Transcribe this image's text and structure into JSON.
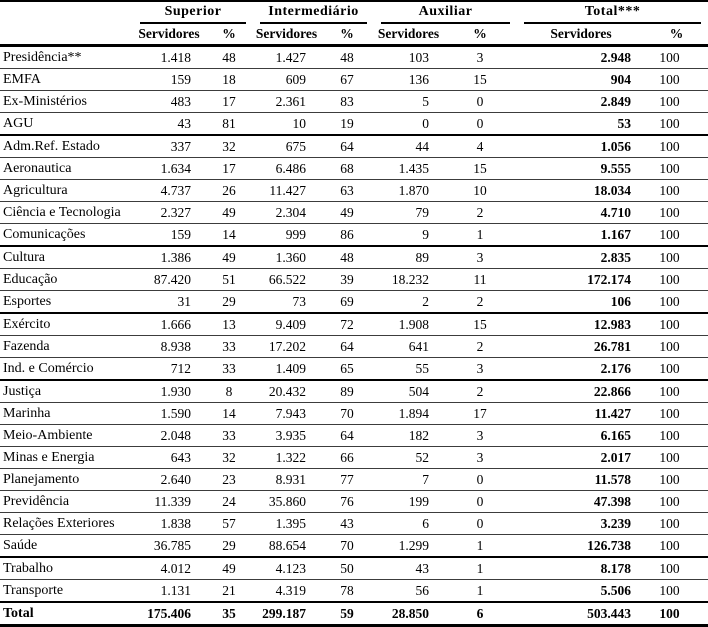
{
  "table": {
    "column_groups": [
      {
        "label": "Superior"
      },
      {
        "label": "Intermediário"
      },
      {
        "label": "Auxiliar"
      },
      {
        "label": "Total***"
      }
    ],
    "subheader": {
      "servidores": "Servidores",
      "percent": "%"
    },
    "rows": [
      {
        "label": "Presidência**",
        "values": [
          "1.418",
          "48",
          "1.427",
          "48",
          "103",
          "3",
          "2.948",
          "100"
        ]
      },
      {
        "label": "EMFA",
        "values": [
          "159",
          "18",
          "609",
          "67",
          "136",
          "15",
          "904",
          "100"
        ]
      },
      {
        "label": "Ex-Ministérios",
        "values": [
          "483",
          "17",
          "2.361",
          "83",
          "5",
          "0",
          "2.849",
          "100"
        ]
      },
      {
        "label": "AGU",
        "values": [
          "43",
          "81",
          "10",
          "19",
          "0",
          "0",
          "53",
          "100"
        ],
        "thick_below": true
      },
      {
        "label": "Adm.Ref. Estado",
        "values": [
          "337",
          "32",
          "675",
          "64",
          "44",
          "4",
          "1.056",
          "100"
        ]
      },
      {
        "label": "Aeronautica",
        "values": [
          "1.634",
          "17",
          "6.486",
          "68",
          "1.435",
          "15",
          "9.555",
          "100"
        ]
      },
      {
        "label": "Agricultura",
        "values": [
          "4.737",
          "26",
          "11.427",
          "63",
          "1.870",
          "10",
          "18.034",
          "100"
        ]
      },
      {
        "label": "Ciência e Tecnologia",
        "values": [
          "2.327",
          "49",
          "2.304",
          "49",
          "79",
          "2",
          "4.710",
          "100"
        ]
      },
      {
        "label": "Comunicações",
        "values": [
          "159",
          "14",
          "999",
          "86",
          "9",
          "1",
          "1.167",
          "100"
        ],
        "thick_below": true
      },
      {
        "label": "Cultura",
        "values": [
          "1.386",
          "49",
          "1.360",
          "48",
          "89",
          "3",
          "2.835",
          "100"
        ]
      },
      {
        "label": "Educação",
        "values": [
          "87.420",
          "51",
          "66.522",
          "39",
          "18.232",
          "11",
          "172.174",
          "100"
        ]
      },
      {
        "label": "Esportes",
        "values": [
          "31",
          "29",
          "73",
          "69",
          "2",
          "2",
          "106",
          "100"
        ],
        "thick_below": true
      },
      {
        "label": "Exército",
        "values": [
          "1.666",
          "13",
          "9.409",
          "72",
          "1.908",
          "15",
          "12.983",
          "100"
        ]
      },
      {
        "label": "Fazenda",
        "values": [
          "8.938",
          "33",
          "17.202",
          "64",
          "641",
          "2",
          "26.781",
          "100"
        ]
      },
      {
        "label": "Ind. e Comércio",
        "values": [
          "712",
          "33",
          "1.409",
          "65",
          "55",
          "3",
          "2.176",
          "100"
        ],
        "thick_below": true
      },
      {
        "label": "Justiça",
        "values": [
          "1.930",
          "8",
          "20.432",
          "89",
          "504",
          "2",
          "22.866",
          "100"
        ]
      },
      {
        "label": "Marinha",
        "values": [
          "1.590",
          "14",
          "7.943",
          "70",
          "1.894",
          "17",
          "11.427",
          "100"
        ]
      },
      {
        "label": "Meio-Ambiente",
        "values": [
          "2.048",
          "33",
          "3.935",
          "64",
          "182",
          "3",
          "6.165",
          "100"
        ]
      },
      {
        "label": "Minas e Energia",
        "values": [
          "643",
          "32",
          "1.322",
          "66",
          "52",
          "3",
          "2.017",
          "100"
        ]
      },
      {
        "label": "Planejamento",
        "values": [
          "2.640",
          "23",
          "8.931",
          "77",
          "7",
          "0",
          "11.578",
          "100"
        ]
      },
      {
        "label": "Previdência",
        "values": [
          "11.339",
          "24",
          "35.860",
          "76",
          "199",
          "0",
          "47.398",
          "100"
        ]
      },
      {
        "label": "Relações Exteriores",
        "values": [
          "1.838",
          "57",
          "1.395",
          "43",
          "6",
          "0",
          "3.239",
          "100"
        ]
      },
      {
        "label": "Saúde",
        "values": [
          "36.785",
          "29",
          "88.654",
          "70",
          "1.299",
          "1",
          "126.738",
          "100"
        ],
        "thick_below": true
      },
      {
        "label": "Trabalho",
        "values": [
          "4.012",
          "49",
          "4.123",
          "50",
          "43",
          "1",
          "8.178",
          "100"
        ]
      },
      {
        "label": "Transporte",
        "values": [
          "1.131",
          "21",
          "4.319",
          "78",
          "56",
          "1",
          "5.506",
          "100"
        ]
      },
      {
        "label": "Total",
        "values": [
          "175.406",
          "35",
          "299.187",
          "59",
          "28.850",
          "6",
          "503.443",
          "100"
        ],
        "total": true
      }
    ]
  }
}
